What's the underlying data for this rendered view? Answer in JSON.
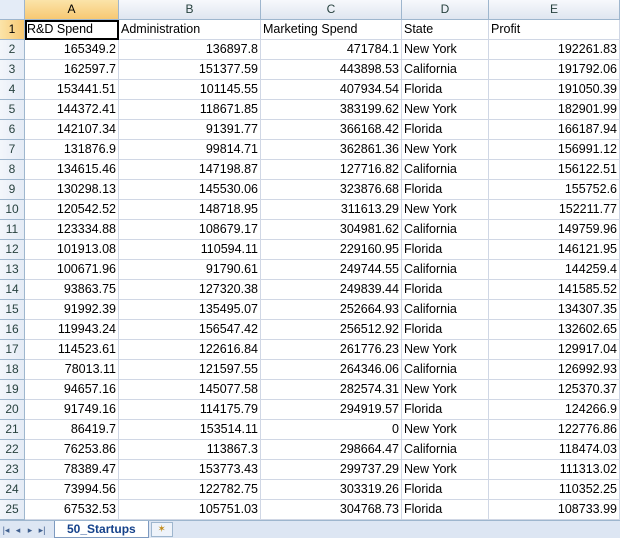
{
  "columns": [
    "A",
    "B",
    "C",
    "D",
    "E"
  ],
  "header_row": {
    "row_number": "1",
    "cells": [
      "R&D Spend",
      "Administration",
      "Marketing Spend",
      "State",
      "Profit"
    ]
  },
  "rows": [
    {
      "n": "2",
      "a": "165349.2",
      "b": "136897.8",
      "c": "471784.1",
      "d": "New York",
      "e": "192261.83"
    },
    {
      "n": "3",
      "a": "162597.7",
      "b": "151377.59",
      "c": "443898.53",
      "d": "California",
      "e": "191792.06"
    },
    {
      "n": "4",
      "a": "153441.51",
      "b": "101145.55",
      "c": "407934.54",
      "d": "Florida",
      "e": "191050.39"
    },
    {
      "n": "5",
      "a": "144372.41",
      "b": "118671.85",
      "c": "383199.62",
      "d": "New York",
      "e": "182901.99"
    },
    {
      "n": "6",
      "a": "142107.34",
      "b": "91391.77",
      "c": "366168.42",
      "d": "Florida",
      "e": "166187.94"
    },
    {
      "n": "7",
      "a": "131876.9",
      "b": "99814.71",
      "c": "362861.36",
      "d": "New York",
      "e": "156991.12"
    },
    {
      "n": "8",
      "a": "134615.46",
      "b": "147198.87",
      "c": "127716.82",
      "d": "California",
      "e": "156122.51"
    },
    {
      "n": "9",
      "a": "130298.13",
      "b": "145530.06",
      "c": "323876.68",
      "d": "Florida",
      "e": "155752.6"
    },
    {
      "n": "10",
      "a": "120542.52",
      "b": "148718.95",
      "c": "311613.29",
      "d": "New York",
      "e": "152211.77"
    },
    {
      "n": "11",
      "a": "123334.88",
      "b": "108679.17",
      "c": "304981.62",
      "d": "California",
      "e": "149759.96"
    },
    {
      "n": "12",
      "a": "101913.08",
      "b": "110594.11",
      "c": "229160.95",
      "d": "Florida",
      "e": "146121.95"
    },
    {
      "n": "13",
      "a": "100671.96",
      "b": "91790.61",
      "c": "249744.55",
      "d": "California",
      "e": "144259.4"
    },
    {
      "n": "14",
      "a": "93863.75",
      "b": "127320.38",
      "c": "249839.44",
      "d": "Florida",
      "e": "141585.52"
    },
    {
      "n": "15",
      "a": "91992.39",
      "b": "135495.07",
      "c": "252664.93",
      "d": "California",
      "e": "134307.35"
    },
    {
      "n": "16",
      "a": "119943.24",
      "b": "156547.42",
      "c": "256512.92",
      "d": "Florida",
      "e": "132602.65"
    },
    {
      "n": "17",
      "a": "114523.61",
      "b": "122616.84",
      "c": "261776.23",
      "d": "New York",
      "e": "129917.04"
    },
    {
      "n": "18",
      "a": "78013.11",
      "b": "121597.55",
      "c": "264346.06",
      "d": "California",
      "e": "126992.93"
    },
    {
      "n": "19",
      "a": "94657.16",
      "b": "145077.58",
      "c": "282574.31",
      "d": "New York",
      "e": "125370.37"
    },
    {
      "n": "20",
      "a": "91749.16",
      "b": "114175.79",
      "c": "294919.57",
      "d": "Florida",
      "e": "124266.9"
    },
    {
      "n": "21",
      "a": "86419.7",
      "b": "153514.11",
      "c": "0",
      "d": "New York",
      "e": "122776.86"
    },
    {
      "n": "22",
      "a": "76253.86",
      "b": "113867.3",
      "c": "298664.47",
      "d": "California",
      "e": "118474.03"
    },
    {
      "n": "23",
      "a": "78389.47",
      "b": "153773.43",
      "c": "299737.29",
      "d": "New York",
      "e": "111313.02"
    },
    {
      "n": "24",
      "a": "73994.56",
      "b": "122782.75",
      "c": "303319.26",
      "d": "Florida",
      "e": "110352.25"
    },
    {
      "n": "25",
      "a": "67532.53",
      "b": "105751.03",
      "c": "304768.73",
      "d": "Florida",
      "e": "108733.99"
    }
  ],
  "sheet_tab": "50_Startups",
  "nav_icons": [
    "first-sheet-icon",
    "prev-sheet-icon",
    "next-sheet-icon",
    "last-sheet-icon"
  ],
  "colors": {
    "accent": "#f7c873",
    "grid": "#d0d7e5",
    "header": "#dfe6f0"
  }
}
